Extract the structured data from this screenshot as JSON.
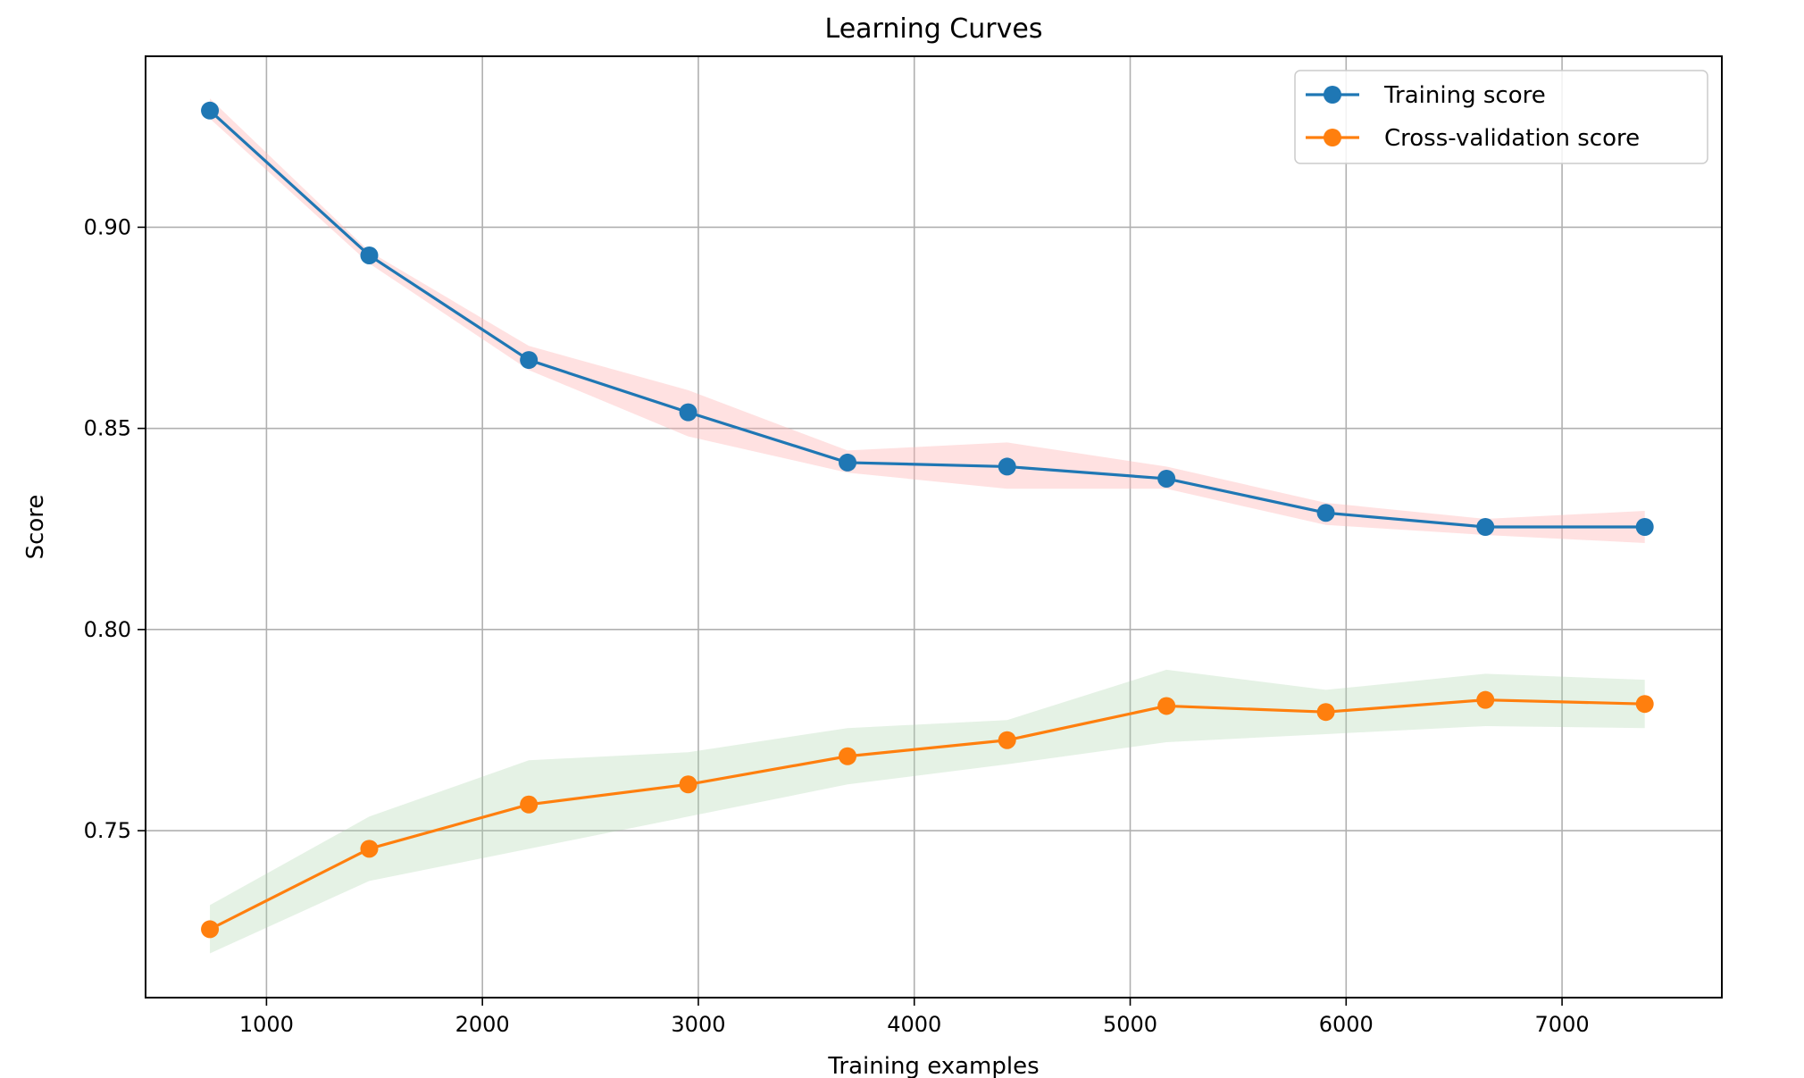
{
  "chart_data": {
    "type": "line",
    "title": "Learning Curves",
    "xlabel": "Training examples",
    "ylabel": "Score",
    "xlim": [
      440,
      7740
    ],
    "ylim": [
      0.7085,
      0.9425
    ],
    "xticks": [
      1000,
      2000,
      3000,
      4000,
      5000,
      6000,
      7000
    ],
    "xtick_labels": [
      "1000",
      "2000",
      "3000",
      "4000",
      "5000",
      "6000",
      "7000"
    ],
    "yticks": [
      0.75,
      0.8,
      0.85,
      0.9
    ],
    "ytick_labels": [
      "0.75",
      "0.80",
      "0.85",
      "0.90"
    ],
    "grid": true,
    "legend_position": "top-right",
    "x": [
      738,
      1476,
      2215,
      2953,
      3691,
      4430,
      5168,
      5906,
      6645,
      7383
    ],
    "series": [
      {
        "name": "Training score",
        "color": "#1f77b4",
        "marker": "circle",
        "values": [
          0.929,
          0.893,
          0.867,
          0.854,
          0.8415,
          0.8405,
          0.8375,
          0.829,
          0.8255,
          0.8255
        ],
        "band": {
          "color": "#ffb3b3",
          "opacity": 0.4,
          "lower": [
            0.927,
            0.891,
            0.8645,
            0.848,
            0.839,
            0.835,
            0.835,
            0.826,
            0.8235,
            0.8215
          ],
          "upper": [
            0.932,
            0.894,
            0.8705,
            0.8595,
            0.8445,
            0.8465,
            0.8405,
            0.8315,
            0.8275,
            0.8295
          ]
        }
      },
      {
        "name": "Cross-validation score",
        "color": "#ff7f0e",
        "marker": "circle",
        "values": [
          0.7255,
          0.7455,
          0.7565,
          0.7615,
          0.7685,
          0.7725,
          0.781,
          0.7795,
          0.7825,
          0.7815
        ],
        "band": {
          "color": "#a8d5a8",
          "opacity": 0.3,
          "lower": [
            0.7195,
            0.7375,
            0.7455,
            0.7535,
            0.7615,
            0.7665,
            0.772,
            0.774,
            0.776,
            0.7755
          ],
          "upper": [
            0.7315,
            0.7535,
            0.7675,
            0.7695,
            0.7755,
            0.7775,
            0.79,
            0.785,
            0.789,
            0.7875
          ]
        }
      }
    ]
  }
}
